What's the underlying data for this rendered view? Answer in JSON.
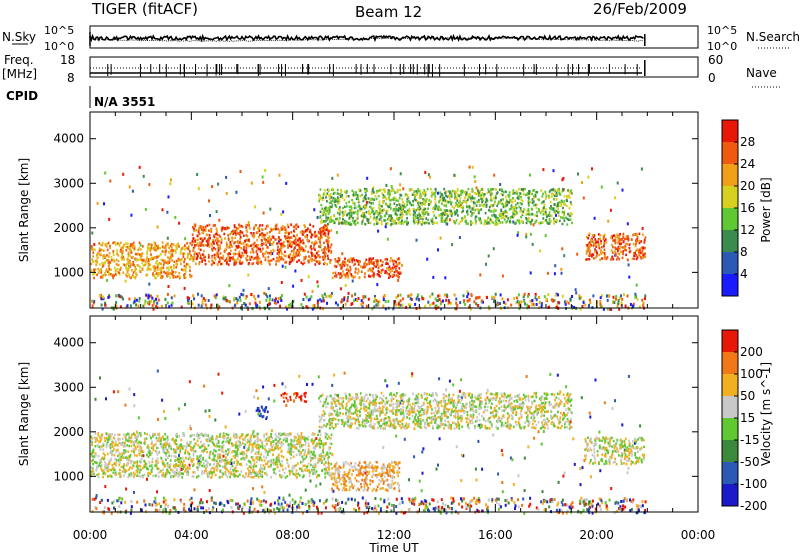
{
  "header": {
    "radar": "TIGER (fitACF)",
    "beam": "Beam 12",
    "date": "26/Feb/2009"
  },
  "sky_panel": {
    "left_label": "N.Sky",
    "right_label": "N.Search",
    "left_ticks": [
      "10^5",
      "10^0"
    ],
    "right_ticks": [
      "10^5",
      "10^0"
    ]
  },
  "freq_panel": {
    "left_label_1": "Freq.",
    "left_label_2": "[MHz]",
    "left_ticks": [
      "18",
      "8"
    ],
    "right_ticks": [
      "60",
      "0"
    ],
    "right_label": "Nave"
  },
  "cpid": {
    "label": "CPID",
    "value": "N/A 3551"
  },
  "colors": {
    "power": [
      "#1a1aff",
      "#2a5ab4",
      "#3b8a50",
      "#5fc832",
      "#d8d020",
      "#f0a018",
      "#f05a10",
      "#e81808"
    ],
    "velocity": [
      "#1a1ac8",
      "#2a5ab4",
      "#3b8a3b",
      "#5fc832",
      "#c8c8c8",
      "#f0b020",
      "#f07818",
      "#e81808"
    ]
  },
  "chart_data": {
    "type": "heatmap",
    "x_ticks": [
      "00:00",
      "04:00",
      "08:00",
      "12:00",
      "16:00",
      "20:00",
      "00:00"
    ],
    "xlabel": "Time UT",
    "xlim_hours": [
      0,
      24
    ],
    "data_end_hour": 21.9,
    "panels": [
      {
        "name": "power",
        "ylabel": "Slant Range [km]",
        "y_ticks": [
          "1000",
          "2000",
          "3000",
          "4000"
        ],
        "ylim_km": [
          200,
          4600
        ],
        "colorbar_label": "Power [dB]",
        "colorbar_ticks": [
          "4",
          "8",
          "12",
          "16",
          "20",
          "24",
          "28"
        ],
        "scatter_regions": [
          {
            "t0": 0.0,
            "t1": 4.0,
            "r0": 900,
            "r1": 1700,
            "level": 5
          },
          {
            "t0": 4.0,
            "t1": 9.5,
            "r0": 1200,
            "r1": 2100,
            "level": 6
          },
          {
            "t0": 9.5,
            "t1": 12.2,
            "r0": 900,
            "r1": 1350,
            "level": 6
          },
          {
            "t0": 9.0,
            "t1": 19.0,
            "r0": 2100,
            "r1": 2900,
            "level": 3
          },
          {
            "t0": 19.5,
            "t1": 21.9,
            "r0": 1300,
            "r1": 1900,
            "level": 6
          }
        ]
      },
      {
        "name": "velocity",
        "ylabel": "Slant Range [km]",
        "y_ticks": [
          "1000",
          "2000",
          "3000",
          "4000"
        ],
        "ylim_km": [
          200,
          4600
        ],
        "colorbar_label": "Velocity [m s^-1]",
        "colorbar_ticks": [
          "200",
          "100",
          "50",
          "15",
          "-15",
          "-50",
          "-100",
          "-200"
        ],
        "scatter_regions": [
          {
            "t0": 0.0,
            "t1": 9.5,
            "r0": 1000,
            "r1": 2000,
            "level": 4
          },
          {
            "t0": 9.5,
            "t1": 12.2,
            "r0": 700,
            "r1": 1350,
            "level": 5
          },
          {
            "t0": 9.0,
            "t1": 19.0,
            "r0": 2100,
            "r1": 2900,
            "level": 4
          },
          {
            "t0": 7.5,
            "t1": 8.5,
            "r0": 2700,
            "r1": 2900,
            "level": 7
          },
          {
            "t0": 6.5,
            "t1": 7.0,
            "r0": 2300,
            "r1": 2600,
            "level": 0
          },
          {
            "t0": 19.5,
            "t1": 21.9,
            "r0": 1300,
            "r1": 1900,
            "level": 4
          }
        ]
      }
    ]
  }
}
